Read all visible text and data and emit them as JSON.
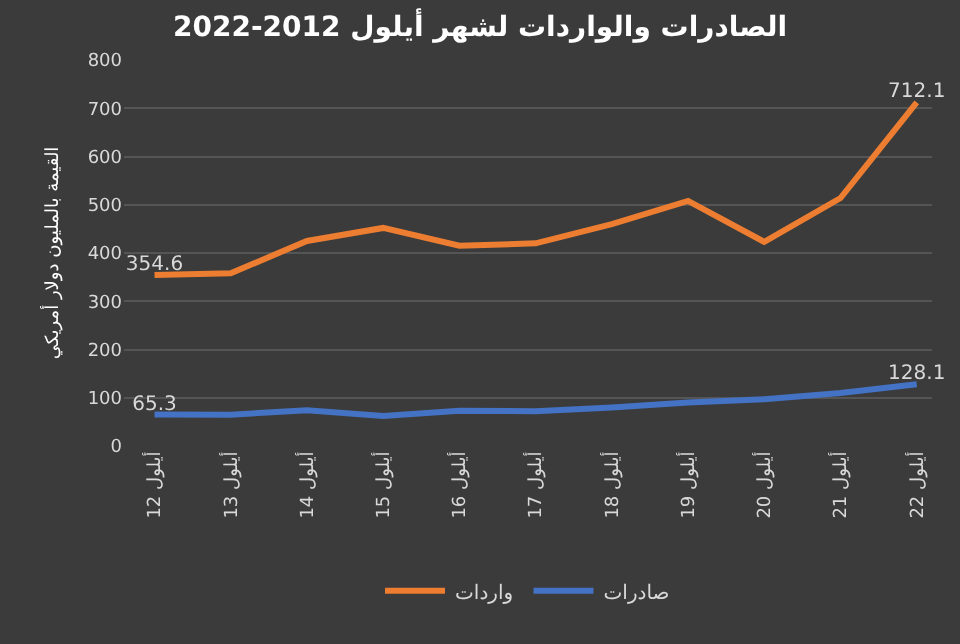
{
  "chart_data": {
    "type": "line",
    "title": "الصادرات والواردات لشهر أيلول 2012-2022",
    "ylabel": "القيمة بالمليون دولار أمريكي",
    "categories": [
      "12 أيلول",
      "13 أيلول",
      "14 أيلول",
      "15 أيلول",
      "16 أيلول",
      "17 أيلول",
      "18 أيلول",
      "19 أيلول",
      "20 أيلول",
      "21 أيلول",
      "22 أيلول"
    ],
    "series": [
      {
        "name": "واردات",
        "color": "#ed7d31",
        "values": [
          354.6,
          358,
          425,
          452,
          415,
          420,
          460,
          508,
          423,
          514,
          712.1
        ],
        "value_labels": [
          "354.6",
          null,
          null,
          null,
          null,
          null,
          null,
          null,
          null,
          null,
          "712.1"
        ]
      },
      {
        "name": "صادرات",
        "color": "#4472c4",
        "values": [
          65.3,
          65,
          74,
          62,
          73,
          72,
          80,
          90,
          97,
          110,
          128.1
        ],
        "value_labels": [
          "65.3",
          null,
          null,
          null,
          null,
          null,
          null,
          null,
          null,
          null,
          "128.1"
        ]
      }
    ],
    "ylim": [
      0,
      800
    ],
    "yticks": [
      0,
      100,
      200,
      300,
      400,
      500,
      600,
      700,
      800
    ],
    "grid": "y",
    "legend": "bottom",
    "marker": "none",
    "line_style": "solid"
  }
}
